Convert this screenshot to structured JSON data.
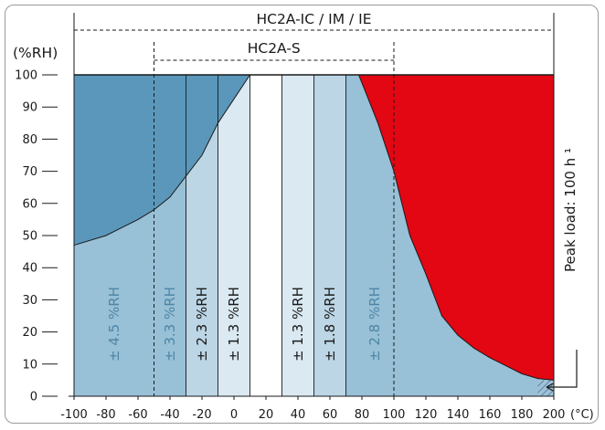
{
  "chart_data": {
    "type": "area",
    "title_wide": "HC2A-IC / IM / IE",
    "title_wide_range": [
      -100,
      200
    ],
    "title_narrow": "HC2A-S",
    "title_narrow_range": [
      -50,
      100
    ],
    "ylabel": "(%RH)",
    "xunit": "(°C)",
    "side_label": "Peak load: 100 h ¹",
    "xlim": [
      -100,
      200
    ],
    "ylim": [
      0,
      100
    ],
    "x_ticks": [
      -100,
      -80,
      -60,
      -40,
      -20,
      0,
      20,
      40,
      60,
      80,
      100,
      120,
      140,
      160,
      180,
      200
    ],
    "x_tick_labels": [
      "-100",
      "-80",
      "-60",
      "-40",
      "-20",
      "0",
      "20",
      "40",
      "60",
      "80",
      "100",
      "120",
      "140",
      "160",
      "180",
      "200"
    ],
    "y_ticks": [
      0,
      10,
      20,
      30,
      40,
      50,
      60,
      70,
      80,
      90,
      100
    ],
    "y_tick_labels": [
      "0",
      "10",
      "20",
      "30",
      "40",
      "50",
      "60",
      "70",
      "80",
      "90",
      "100"
    ],
    "accuracy_bands": [
      {
        "x0": -100,
        "x1": -50,
        "label": "± 4.5 %RH",
        "fill": "#98c0d6",
        "text_color": "#4e86a6"
      },
      {
        "x0": -50,
        "x1": -30,
        "label": "± 3.3 %RH",
        "fill": "#98c0d6",
        "text_color": "#4e86a6"
      },
      {
        "x0": -30,
        "x1": -10,
        "label": "± 2.3 %RH",
        "fill": "#bcd6e5",
        "text_color": "#1a1a1a"
      },
      {
        "x0": -10,
        "x1": 10,
        "label": "± 1.3 %RH",
        "fill": "#dbe9f2",
        "text_color": "#1a1a1a"
      },
      {
        "x0": 10,
        "x1": 30,
        "label": "",
        "fill": "#ffffff",
        "text_color": "#1a1a1a"
      },
      {
        "x0": 30,
        "x1": 50,
        "label": "± 1.3 %RH",
        "fill": "#dbe9f2",
        "text_color": "#1a1a1a"
      },
      {
        "x0": 50,
        "x1": 70,
        "label": "± 1.8 %RH",
        "fill": "#bcd6e5",
        "text_color": "#1a1a1a"
      },
      {
        "x0": 70,
        "x1": 200,
        "label": "± 2.8 %RH",
        "fill": "#98c0d6",
        "text_color": "#4e86a6"
      }
    ],
    "cold_region": {
      "fill": "#5a97bb",
      "boundary": [
        [
          -100,
          47
        ],
        [
          -80,
          50
        ],
        [
          -60,
          55
        ],
        [
          -50,
          58
        ],
        [
          -40,
          62
        ],
        [
          -20,
          75
        ],
        [
          -10,
          85
        ],
        [
          10,
          100
        ]
      ]
    },
    "hot_region": {
      "fill": "#e30613",
      "boundary": [
        [
          78,
          100
        ],
        [
          90,
          85
        ],
        [
          100,
          70
        ],
        [
          110,
          50
        ],
        [
          120,
          38
        ],
        [
          130,
          25
        ],
        [
          140,
          19
        ],
        [
          150,
          15
        ],
        [
          160,
          12
        ],
        [
          170,
          9.5
        ],
        [
          180,
          7
        ],
        [
          190,
          5.5
        ],
        [
          200,
          5
        ]
      ]
    },
    "hatch_region": {
      "x0": 190,
      "x1": 200,
      "y0": 0,
      "y1": 5
    },
    "grid": false
  }
}
